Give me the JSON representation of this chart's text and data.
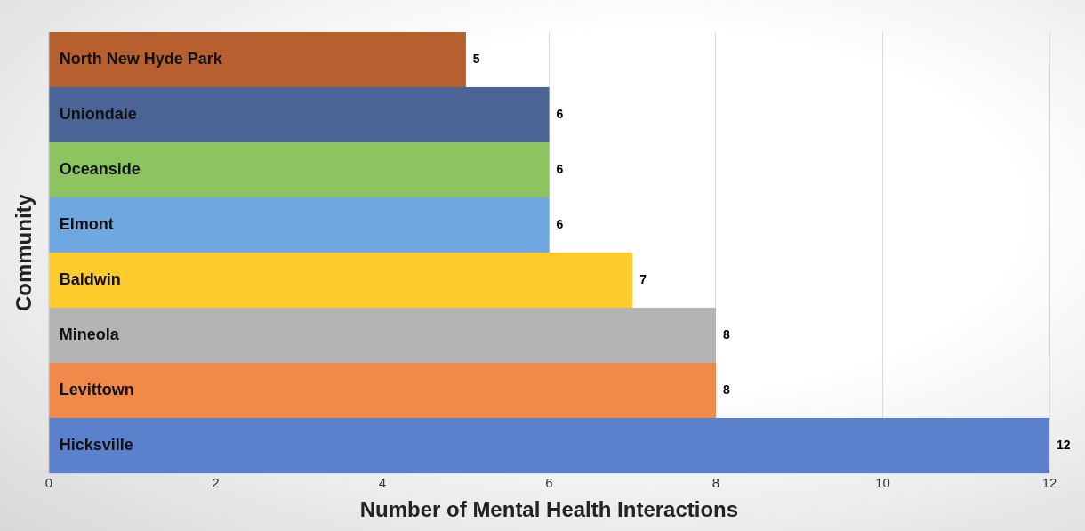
{
  "chart_data": {
    "type": "bar",
    "orientation": "horizontal",
    "xlabel": "Number of Mental Health Interactions",
    "ylabel": "Community",
    "categories": [
      "North New Hyde Park",
      "Uniondale",
      "Oceanside",
      "Elmont",
      "Baldwin",
      "Mineola",
      "Levittown",
      "Hicksville"
    ],
    "values": [
      5,
      6,
      6,
      6,
      7,
      8,
      8,
      12
    ],
    "colors": [
      "#b5602e",
      "#4a6496",
      "#8cc460",
      "#6fa8e0",
      "#fdcb2b",
      "#b4b4b4",
      "#f08a4b",
      "#5b80cc"
    ],
    "xlim": [
      0,
      12
    ],
    "xticks": [
      0,
      2,
      4,
      6,
      8,
      10,
      12
    ],
    "grid": "x",
    "legend": false,
    "data_labels": true
  }
}
